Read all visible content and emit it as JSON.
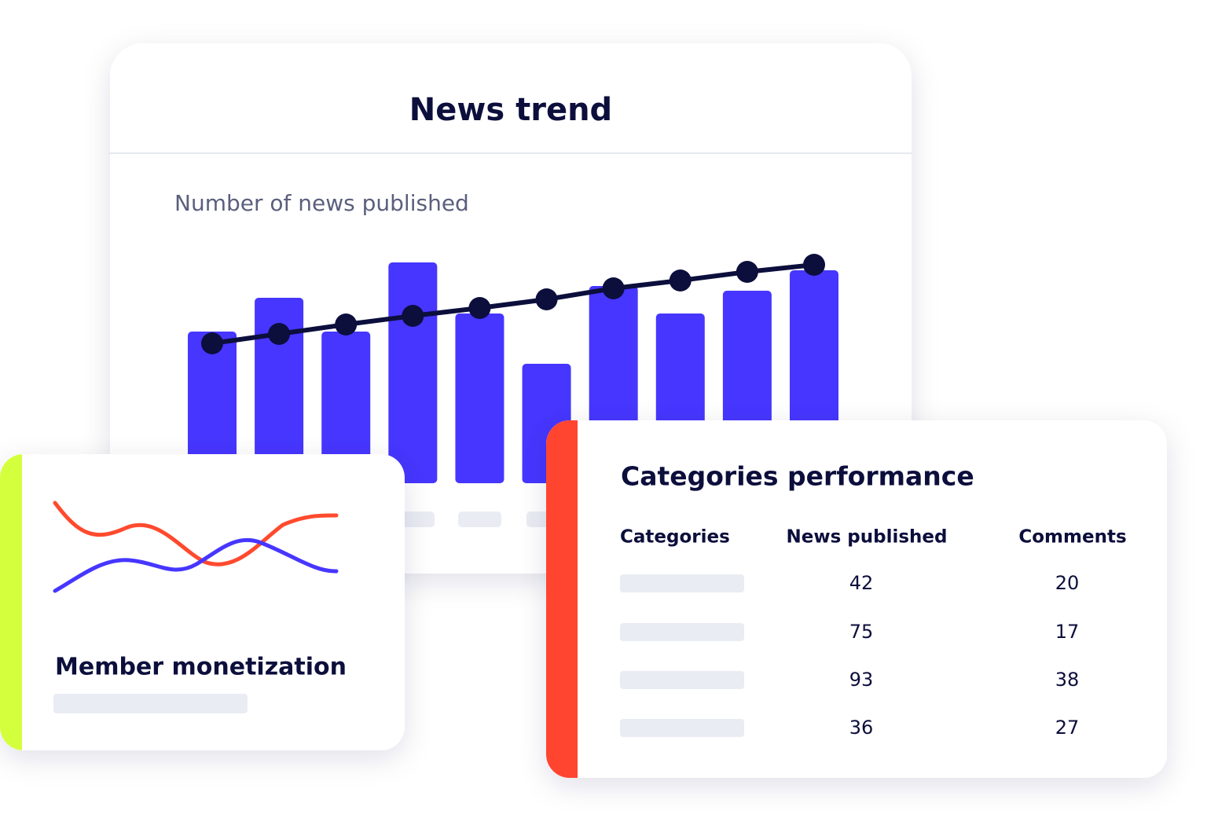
{
  "news_trend": {
    "title": "News trend",
    "subtitle": "Number of news published",
    "bars": [
      193,
      236,
      193,
      281,
      216,
      152,
      251,
      216,
      245,
      271
    ],
    "line": [
      178,
      190,
      202,
      213,
      223,
      234,
      248,
      258,
      269,
      278
    ]
  },
  "member_monetization": {
    "title": "Member monetization"
  },
  "categories_performance": {
    "title": "Categories performance",
    "columns": [
      "Categories",
      "News published",
      "Comments"
    ],
    "rows": [
      [
        42,
        20
      ],
      [
        75,
        17
      ],
      [
        93,
        38
      ],
      [
        36,
        27
      ]
    ]
  }
}
